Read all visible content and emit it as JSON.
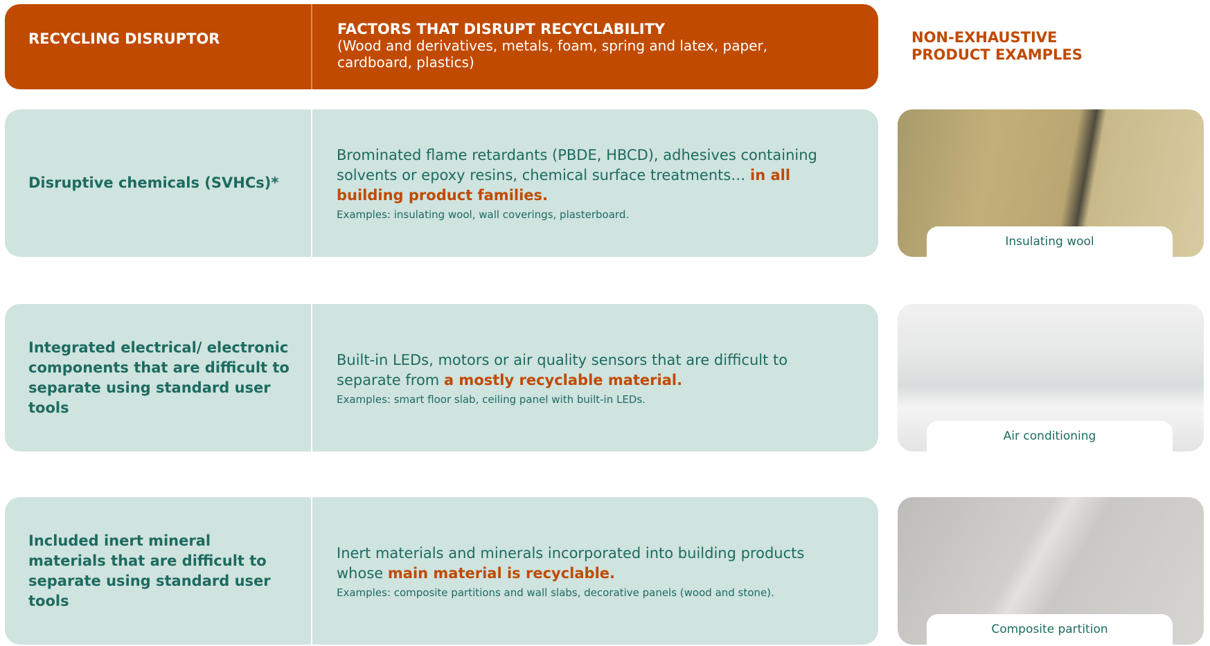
{
  "header": {
    "disruptor": "RECYCLING DISRUPTOR",
    "factors_title": "FACTORS THAT DISRUPT RECYCLABILITY",
    "factors_subtitle": "(Wood and derivatives, metals, foam, spring and latex, paper, cardboard, plastics)",
    "examples": "NON-EXHAUSTIVE PRODUCT EXAMPLES"
  },
  "rows": [
    {
      "disruptor": "Disruptive chemicals (SVHCs)*",
      "text": "Brominated flame retardants (PBDE, HBCD), adhesives containing solvents or epoxy resins, chemical surface treatments…",
      "highlight": "in all building product families.",
      "examples": "Examples: insulating wool, wall coverings, plasterboard.",
      "caption": "Insulating wool"
    },
    {
      "disruptor": "Integrated electrical/ electronic components that are difficult to separate using standard user tools",
      "text": "Built-in LEDs, motors or air quality sensors that are difficult to separate from",
      "highlight": "a mostly recyclable material.",
      "examples": "Examples: smart floor slab, ceiling panel with built-in LEDs.",
      "caption": "Air conditioning"
    },
    {
      "disruptor": "Included inert mineral materials that are difficult to separate using standard user tools",
      "text": "Inert materials and minerals incorporated into building products whose",
      "highlight": "main material is recyclable.",
      "examples": "Examples: composite partitions and wall slabs, decorative panels (wood and stone).",
      "caption": "Composite partition"
    }
  ]
}
